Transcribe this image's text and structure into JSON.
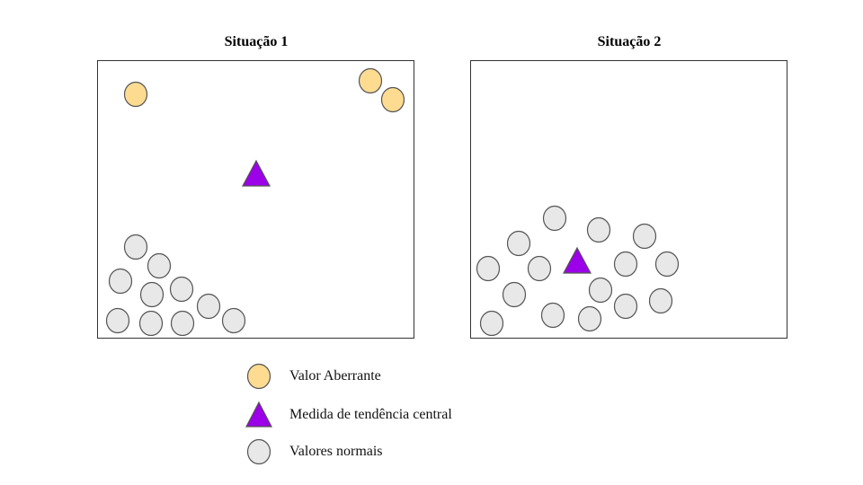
{
  "panels": [
    {
      "title": "Situação 1",
      "outliers": [
        [
          42,
          37
        ],
        [
          303,
          22
        ],
        [
          328,
          43
        ]
      ],
      "normals": [
        [
          42,
          207
        ],
        [
          68,
          228
        ],
        [
          25,
          245
        ],
        [
          60,
          260
        ],
        [
          93,
          254
        ],
        [
          123,
          273
        ],
        [
          22,
          289
        ],
        [
          59,
          292
        ],
        [
          94,
          292
        ],
        [
          151,
          289
        ]
      ],
      "center": [
        176,
        125
      ]
    },
    {
      "title": "Situação 2",
      "outliers": [],
      "normals": [
        [
          93,
          175
        ],
        [
          142,
          188
        ],
        [
          53,
          203
        ],
        [
          193,
          195
        ],
        [
          19,
          231
        ],
        [
          76,
          231
        ],
        [
          172,
          226
        ],
        [
          218,
          226
        ],
        [
          48,
          260
        ],
        [
          144,
          255
        ],
        [
          91,
          283
        ],
        [
          132,
          287
        ],
        [
          172,
          273
        ],
        [
          211,
          267
        ],
        [
          23,
          292
        ]
      ],
      "center": [
        118,
        222
      ]
    }
  ],
  "legend": [
    {
      "type": "outlier",
      "label": "Valor Aberrante"
    },
    {
      "type": "center",
      "label": "Medida de tendência central"
    },
    {
      "type": "normal",
      "label": "Valores normais"
    }
  ],
  "colors": {
    "outlier_fill": "#fddb91",
    "normal_fill": "#e8e8e8",
    "center_fill": "#9b00e8",
    "stroke": "#555555"
  }
}
